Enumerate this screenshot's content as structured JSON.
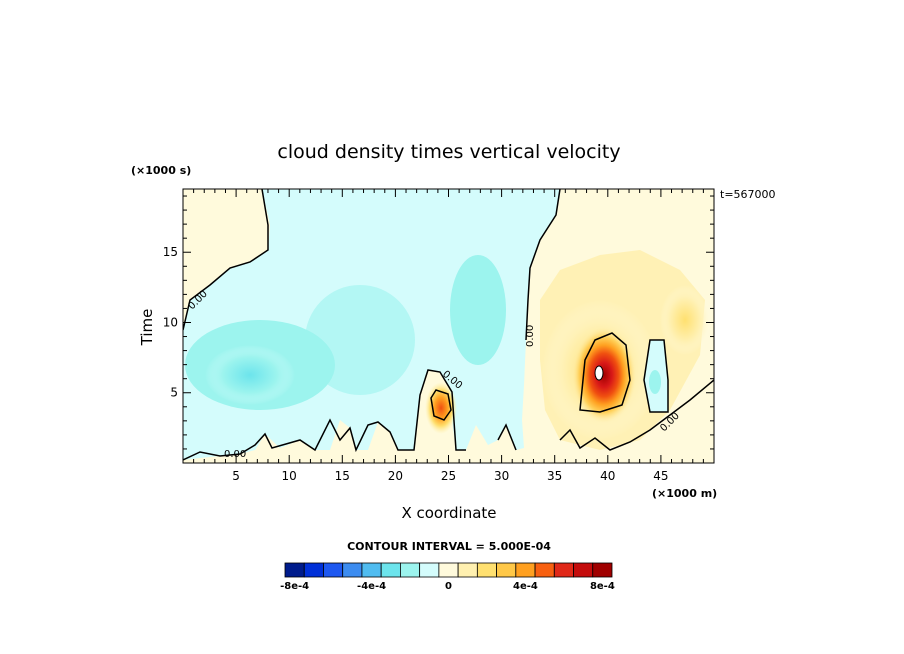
{
  "chart_data": {
    "type": "heatmap",
    "title": "cloud density times vertical velocity",
    "xlabel": "X coordinate",
    "ylabel": "Time",
    "x_units": "(×1000 m)",
    "y_units": "(×1000 s)",
    "timestamp": "t=567000",
    "xlim": [
      0,
      50
    ],
    "ylim": [
      0,
      19.5
    ],
    "x_ticks": [
      5,
      10,
      15,
      20,
      25,
      30,
      35,
      40,
      45
    ],
    "y_ticks": [
      5,
      10,
      15
    ],
    "contour_label": "0.00",
    "contour_interval_text": "CONTOUR INTERVAL = 5.000E-04",
    "colorbar": {
      "colors": [
        "#001c8c",
        "#0030d8",
        "#1e58f0",
        "#3c8cf0",
        "#50bcf0",
        "#6ce4ec",
        "#9cf4ee",
        "#d4fcfc",
        "#fffadc",
        "#fff0b0",
        "#ffe070",
        "#ffc848",
        "#ffa020",
        "#f86010",
        "#e02818",
        "#c40c0c",
        "#a00000"
      ],
      "tick_labels": [
        "-8e-4",
        "-4e-4",
        "0",
        "4e-4",
        "8e-4"
      ],
      "tick_values": [
        -0.0008,
        -0.0004,
        0,
        0.0004,
        0.0008
      ]
    },
    "field_features": [
      {
        "x": 39.2,
        "y": 6.6,
        "value": 0.0009,
        "desc": "strong positive updraft maximum"
      },
      {
        "x": 24.2,
        "y": 4.0,
        "value": 0.0005,
        "desc": "positive cell"
      },
      {
        "x": 6,
        "y": 6,
        "value": -0.0004,
        "desc": "negative region"
      },
      {
        "x": 27.5,
        "y": 12,
        "value": -0.0002,
        "desc": "negative band"
      },
      {
        "x": 46,
        "y": 5.5,
        "value": -0.0003,
        "desc": "negative pocket"
      }
    ]
  }
}
